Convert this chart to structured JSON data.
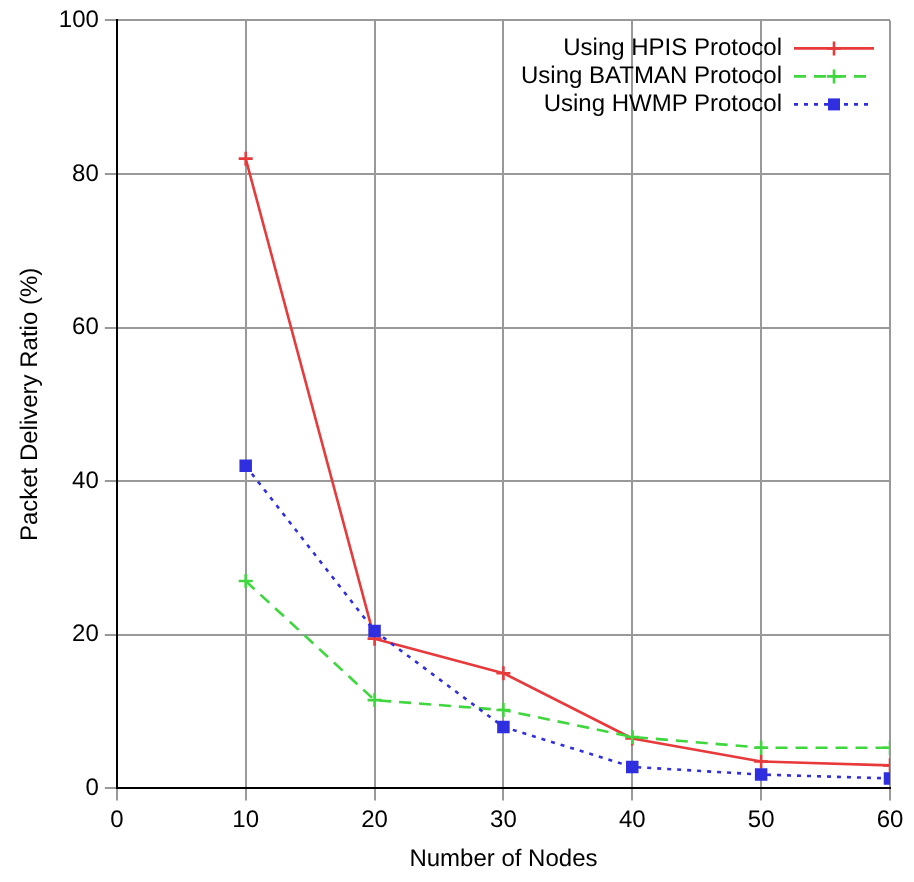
{
  "chart_data": {
    "type": "line",
    "xlabel": "Number of Nodes",
    "ylabel": "Packet Delivery Ratio (%)",
    "x": [
      10,
      20,
      30,
      40,
      50,
      60
    ],
    "series": [
      {
        "name": "Using HPIS Protocol",
        "color": "#e8393b",
        "values": [
          82,
          19.5,
          15,
          6.5,
          3.5,
          3
        ],
        "marker": "cross",
        "line_style": "solid"
      },
      {
        "name": "Using BATMAN Protocol",
        "color": "#3ed83e",
        "values": [
          27,
          11.5,
          10.2,
          6.7,
          5.3,
          5.3
        ],
        "marker": "cross",
        "line_style": "dashed"
      },
      {
        "name": "Using HWMP Protocol",
        "color": "#2f2fe0",
        "values": [
          42,
          20.5,
          8,
          2.8,
          1.8,
          1.3
        ],
        "marker": "square",
        "line_style": "dotted"
      }
    ],
    "xlim": [
      0,
      60
    ],
    "xticks": [
      0,
      10,
      20,
      30,
      40,
      50,
      60
    ],
    "ylim": [
      0,
      100
    ],
    "yticks": [
      0,
      20,
      40,
      60,
      80,
      100
    ],
    "grid": true,
    "legend": "top right"
  }
}
